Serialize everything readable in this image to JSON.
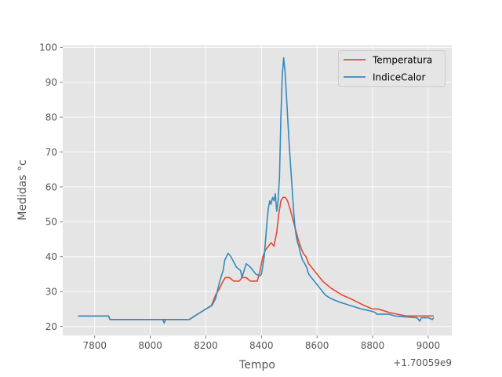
{
  "chart_data": {
    "type": "line",
    "title": "",
    "xlabel": "Tempo",
    "ylabel": "Medidas °c",
    "x_offset_label": "+1.70059e9",
    "xlim": [
      7685,
      9085
    ],
    "ylim": [
      17.4,
      100.6
    ],
    "x_ticks": [
      7800,
      8000,
      8200,
      8400,
      8600,
      8800,
      9000
    ],
    "y_ticks": [
      20,
      30,
      40,
      50,
      60,
      70,
      80,
      90,
      100
    ],
    "grid": true,
    "legend_position": "top-right",
    "series": [
      {
        "name": "Temperatura",
        "color": "#E24A33",
        "x": [
          7740,
          7850,
          7855,
          8040,
          8055,
          8140,
          8160,
          8180,
          8200,
          8220,
          8235,
          8250,
          8262,
          8270,
          8285,
          8300,
          8320,
          8330,
          8345,
          8360,
          8385,
          8395,
          8405,
          8415,
          8425,
          8435,
          8445,
          8455,
          8462,
          8470,
          8478,
          8486,
          8494,
          8502,
          8512,
          8522,
          8532,
          8540,
          8550,
          8560,
          8570,
          8580,
          8590,
          8600,
          8610,
          8620,
          8635,
          8650,
          8670,
          8690,
          8720,
          8745,
          8770,
          8800,
          8820,
          8860,
          8920,
          8960,
          9000,
          9020
        ],
        "y": [
          23,
          23,
          22,
          22,
          22,
          22,
          23,
          24,
          25,
          26,
          29,
          31,
          33,
          34,
          34,
          33,
          33,
          34,
          34,
          33,
          33,
          36,
          40,
          42,
          43,
          44,
          43,
          47,
          52,
          56,
          57,
          57,
          56,
          54,
          51,
          48,
          45,
          43,
          41,
          40,
          38,
          37,
          36,
          35,
          34,
          33,
          32,
          31,
          30,
          29,
          28,
          27,
          26,
          25,
          25,
          24,
          23,
          23,
          23,
          23
        ]
      },
      {
        "name": "IndiceCalor",
        "color": "#348ABD",
        "x": [
          7740,
          7850,
          7852,
          7856,
          8045,
          8050,
          8055,
          8060,
          8140,
          8160,
          8180,
          8200,
          8222,
          8235,
          8250,
          8262,
          8268,
          8280,
          8290,
          8310,
          8325,
          8330,
          8345,
          8360,
          8380,
          8395,
          8400,
          8410,
          8420,
          8425,
          8430,
          8434,
          8440,
          8445,
          8450,
          8455,
          8460,
          8465,
          8470,
          8475,
          8480,
          8485,
          8490,
          8495,
          8500,
          8505,
          8510,
          8515,
          8520,
          8525,
          8530,
          8535,
          8540,
          8548,
          8556,
          8562,
          8570,
          8580,
          8590,
          8600,
          8610,
          8620,
          8630,
          8640,
          8650,
          8665,
          8680,
          8700,
          8720,
          8740,
          8760,
          8790,
          8810,
          8815,
          8860,
          8880,
          8960,
          8970,
          8975,
          9000,
          9015,
          9020
        ],
        "y": [
          23,
          23,
          22.5,
          22,
          22,
          21,
          22,
          22,
          22,
          23,
          24,
          25,
          26,
          28,
          33,
          36,
          39,
          41,
          40,
          37,
          36,
          34,
          38,
          37,
          35,
          34.5,
          35,
          40,
          50,
          54,
          56,
          55,
          57,
          56,
          58,
          53,
          56,
          63,
          80,
          92,
          97,
          93,
          86,
          79,
          72,
          66,
          60,
          54,
          49,
          46,
          44,
          43,
          41,
          39,
          38,
          37,
          35,
          34,
          33,
          32,
          31,
          30,
          29,
          28.5,
          28,
          27.5,
          27,
          26.5,
          26,
          25.5,
          25,
          24.5,
          24,
          23.5,
          23.5,
          23,
          22.5,
          21.5,
          22.5,
          22.5,
          22,
          22.5
        ]
      }
    ]
  }
}
